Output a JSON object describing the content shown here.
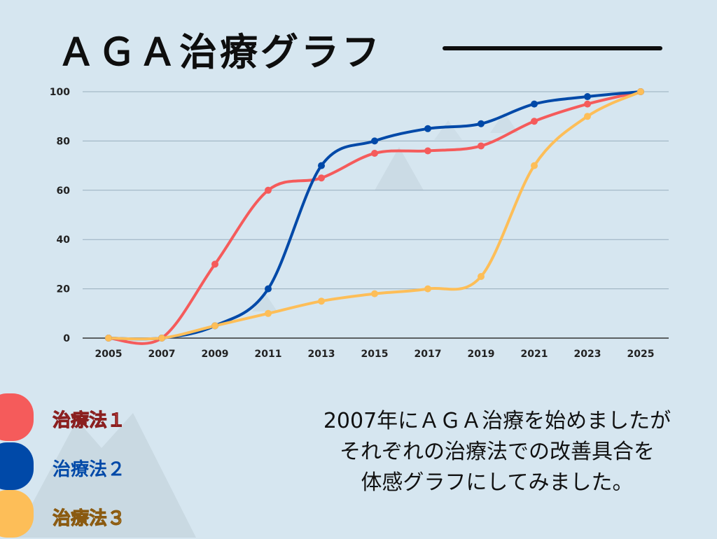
{
  "title": "ＡＧＡ治療グラフ",
  "chart_data": {
    "type": "line",
    "x": [
      "2005",
      "2007",
      "2009",
      "2011",
      "2013",
      "2015",
      "2017",
      "2019",
      "2021",
      "2023",
      "2025"
    ],
    "ylim": [
      0,
      100
    ],
    "yticks": [
      0,
      20,
      40,
      60,
      80,
      100
    ],
    "grid": true,
    "series": [
      {
        "name": "治療法１",
        "color": "#f55b5b",
        "values": [
          0,
          0,
          30,
          60,
          65,
          75,
          76,
          78,
          88,
          95,
          100
        ]
      },
      {
        "name": "治療法２",
        "color": "#0049a8",
        "values": [
          0,
          0,
          5,
          20,
          70,
          80,
          85,
          87,
          95,
          98,
          100
        ]
      },
      {
        "name": "治療法３",
        "color": "#fdbe58",
        "values": [
          0,
          0,
          5,
          10,
          15,
          18,
          20,
          25,
          70,
          90,
          100
        ]
      }
    ]
  },
  "legend": [
    {
      "label": "治療法１",
      "color": "#f55b5b"
    },
    {
      "label": "治療法２",
      "color": "#0049a8"
    },
    {
      "label": "治療法３",
      "color": "#fdbe58"
    }
  ],
  "caption": {
    "line1": "2007年にＡＧＡ治療を始めましたが",
    "line2": "それぞれの治療法での改善具合を",
    "line3": "体感グラフにしてみました。"
  }
}
